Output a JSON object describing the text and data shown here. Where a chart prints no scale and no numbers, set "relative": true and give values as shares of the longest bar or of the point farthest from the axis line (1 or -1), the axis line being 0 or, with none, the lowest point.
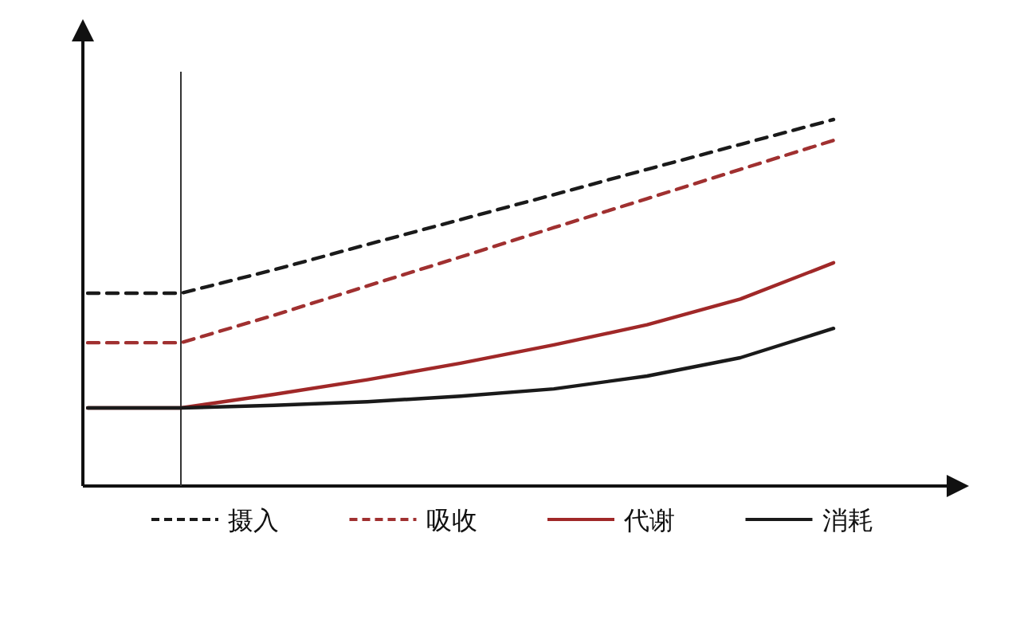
{
  "chart_data": {
    "type": "line",
    "relative": true,
    "legend": "bottom",
    "categories": [
      null,
      null,
      null,
      null,
      null,
      null,
      null,
      null,
      null
    ],
    "series": [
      {
        "name": "摄入",
        "color": "#1a1a1a",
        "line_style": "dashed",
        "values": [
          0.526,
          0.526,
          0.59,
          0.659,
          0.727,
          0.795,
          0.864,
          0.932,
          1
        ]
      },
      {
        "name": "吸收",
        "color": "#a03030",
        "line_style": "dashed",
        "values": [
          0.391,
          0.391,
          0.466,
          0.546,
          0.625,
          0.705,
          0.784,
          0.864,
          0.943
        ]
      },
      {
        "name": "代谢",
        "color": "#a02828",
        "line_style": "solid",
        "values": [
          0.213,
          0.213,
          0.25,
          0.29,
          0.335,
          0.385,
          0.44,
          0.51,
          0.609
        ]
      },
      {
        "name": "消耗",
        "color": "#1a1a1a",
        "line_style": "solid",
        "values": [
          0.213,
          0.213,
          0.22,
          0.23,
          0.245,
          0.265,
          0.3,
          0.35,
          0.43
        ]
      }
    ]
  }
}
